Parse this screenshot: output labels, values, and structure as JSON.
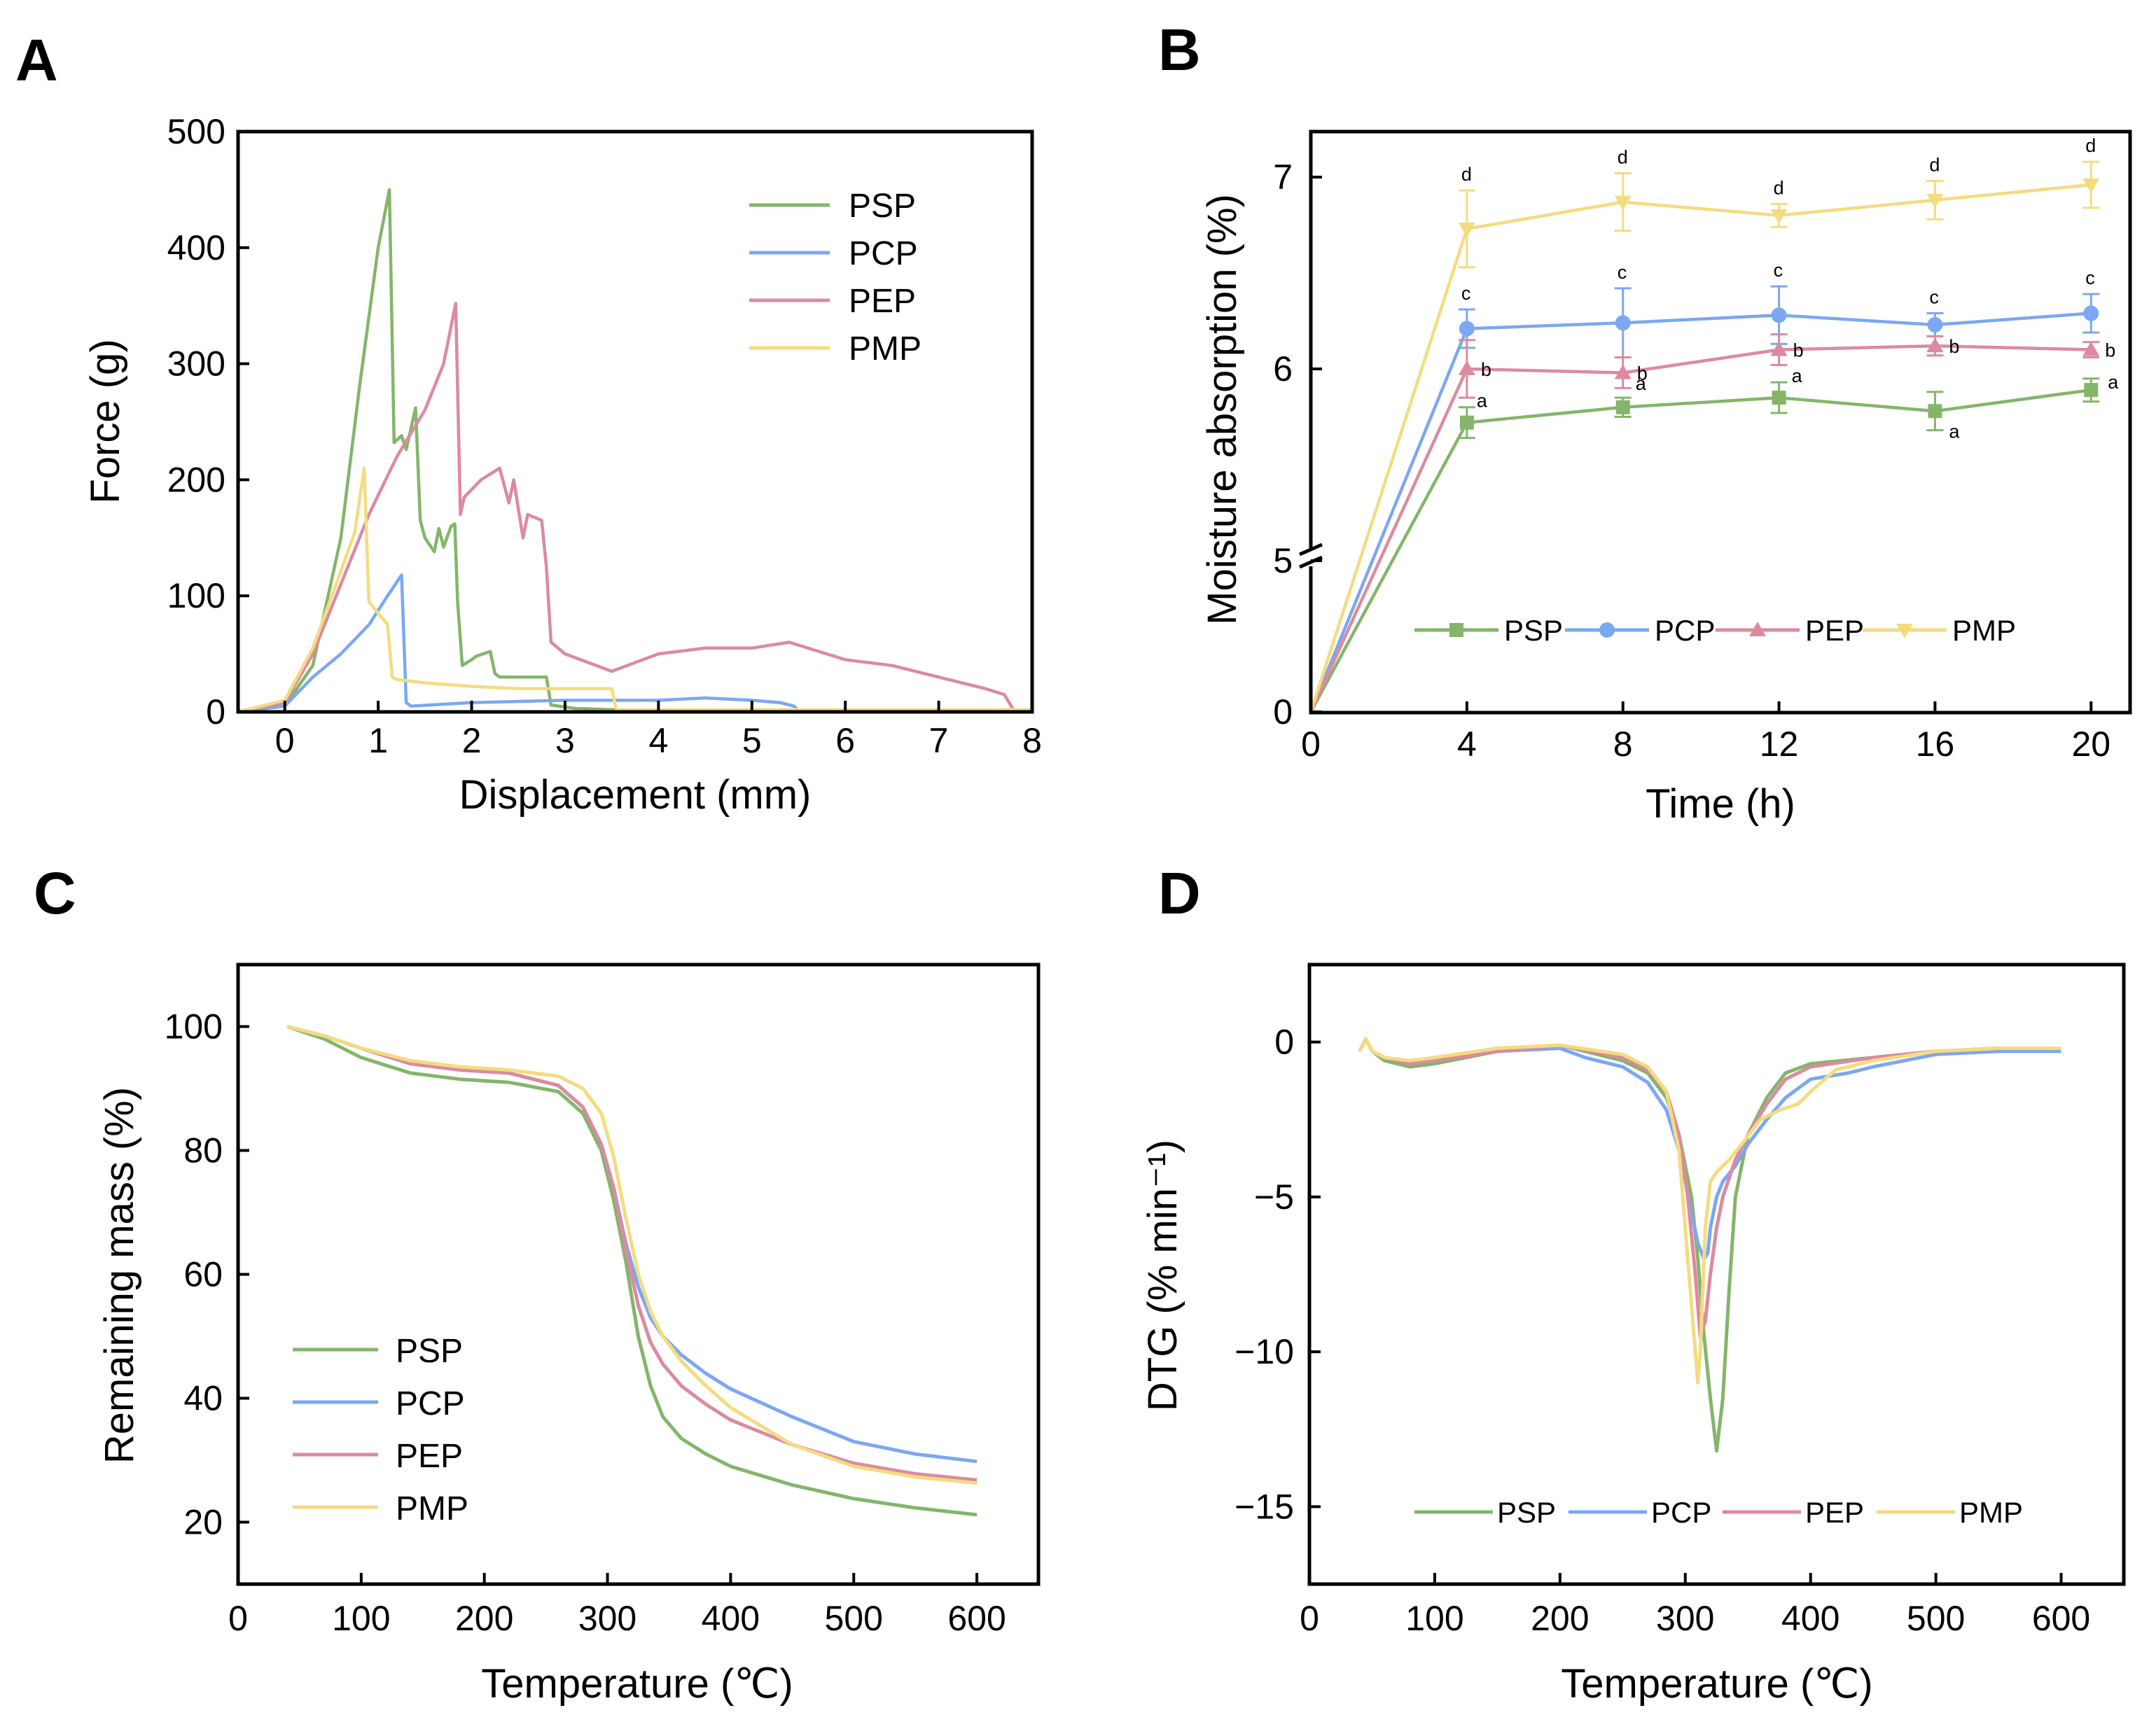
{
  "colors": {
    "PSP": "#84b56a",
    "PCP": "#7ba7f3",
    "PEP": "#dc8aa0",
    "PMP": "#f3dc80"
  },
  "chart_data": [
    {
      "panel": "A",
      "type": "line",
      "xlabel": "Displacement (mm)",
      "ylabel": "Force (g)",
      "xlim": [
        -0.5,
        8
      ],
      "ylim": [
        0,
        500
      ],
      "xticks": [
        0,
        1,
        2,
        3,
        4,
        5,
        6,
        7,
        8
      ],
      "yticks": [
        0,
        100,
        200,
        300,
        400,
        500
      ],
      "legend_position": "top-right",
      "series": [
        {
          "name": "PSP",
          "x": [
            -0.5,
            0,
            0.3,
            0.6,
            0.8,
            1.0,
            1.12,
            1.17,
            1.25,
            1.3,
            1.4,
            1.45,
            1.5,
            1.6,
            1.65,
            1.7,
            1.78,
            1.82,
            1.85,
            1.9,
            2.0,
            2.05,
            2.2,
            2.25,
            2.3,
            2.5,
            2.8,
            2.85,
            3.1,
            3.5,
            4.0,
            5.0,
            6.0,
            7.0,
            8.0
          ],
          "y": [
            0,
            5,
            40,
            150,
            280,
            400,
            450,
            232,
            238,
            226,
            262,
            165,
            150,
            138,
            158,
            142,
            160,
            162,
            95,
            40,
            45,
            48,
            52,
            33,
            30,
            30,
            30,
            6,
            3,
            2,
            2,
            2,
            2,
            2,
            2
          ]
        },
        {
          "name": "PCP",
          "x": [
            -0.5,
            0,
            0.3,
            0.6,
            0.9,
            1.1,
            1.25,
            1.3,
            1.35,
            2.0,
            3.0,
            4.0,
            4.5,
            5.0,
            5.3,
            5.45,
            5.5,
            6,
            7,
            8
          ],
          "y": [
            0,
            5,
            30,
            50,
            75,
            100,
            118,
            8,
            5,
            8,
            10,
            10,
            12,
            10,
            8,
            5,
            1,
            1,
            1,
            1
          ]
        },
        {
          "name": "PEP",
          "x": [
            -0.5,
            0,
            0.3,
            0.6,
            0.9,
            1.2,
            1.5,
            1.7,
            1.83,
            1.88,
            1.92,
            2.1,
            2.3,
            2.4,
            2.45,
            2.55,
            2.6,
            2.75,
            2.8,
            2.85,
            3.0,
            3.5,
            4.0,
            4.5,
            5.0,
            5.4,
            5.6,
            6.0,
            6.5,
            7.0,
            7.5,
            7.7,
            7.8,
            8.0
          ],
          "y": [
            0,
            8,
            50,
            110,
            170,
            220,
            260,
            300,
            352,
            170,
            185,
            200,
            210,
            180,
            200,
            150,
            170,
            165,
            125,
            60,
            50,
            35,
            50,
            55,
            55,
            60,
            55,
            45,
            40,
            30,
            20,
            15,
            2,
            2
          ]
        },
        {
          "name": "PMP",
          "x": [
            -0.5,
            0,
            0.3,
            0.55,
            0.75,
            0.85,
            0.9,
            1.0,
            1.1,
            1.15,
            1.2,
            1.5,
            2.0,
            2.5,
            3.0,
            3.5,
            3.55,
            4,
            8
          ],
          "y": [
            0,
            10,
            55,
            110,
            155,
            210,
            95,
            85,
            75,
            30,
            28,
            25,
            22,
            20,
            20,
            20,
            2,
            2,
            2
          ]
        }
      ]
    },
    {
      "panel": "B",
      "type": "line",
      "xlabel": "Time (h)",
      "ylabel": "Moisture absorption (%)",
      "x": [
        0,
        4,
        8,
        12,
        16,
        20
      ],
      "xlim": [
        0,
        21
      ],
      "yticks": [
        0,
        5,
        6,
        7
      ],
      "axis_break": [
        0,
        5
      ],
      "ylim_upper": [
        5,
        7.25
      ],
      "legend_position": "bottom",
      "series": [
        {
          "name": "PSP",
          "values": [
            0,
            5.72,
            5.8,
            5.85,
            5.78,
            5.89
          ],
          "errors": [
            0,
            0.08,
            0.05,
            0.08,
            0.1,
            0.06
          ],
          "letters": [
            "",
            "a",
            "a",
            "a",
            "a",
            "a"
          ]
        },
        {
          "name": "PCP",
          "values": [
            0,
            6.21,
            6.24,
            6.28,
            6.23,
            6.29
          ],
          "errors": [
            0,
            0.1,
            0.18,
            0.15,
            0.06,
            0.1
          ],
          "letters": [
            "",
            "c",
            "c",
            "c",
            "c",
            "c"
          ]
        },
        {
          "name": "PEP",
          "values": [
            0,
            6.0,
            5.98,
            6.1,
            6.12,
            6.1
          ],
          "errors": [
            0,
            0.15,
            0.08,
            0.08,
            0.05,
            0.04
          ],
          "letters": [
            "",
            "b",
            "b",
            "b",
            "b",
            "b"
          ]
        },
        {
          "name": "PMP",
          "values": [
            0,
            6.73,
            6.87,
            6.8,
            6.88,
            6.96
          ],
          "errors": [
            0,
            0.2,
            0.15,
            0.06,
            0.1,
            0.12
          ],
          "letters": [
            "",
            "d",
            "d",
            "d",
            "d",
            "d"
          ]
        }
      ]
    },
    {
      "panel": "C",
      "type": "line",
      "xlabel": "Temperature (℃)",
      "ylabel": "Remaining mass (%)",
      "xlim": [
        0,
        650
      ],
      "ylim": [
        10,
        110
      ],
      "xticks": [
        0,
        100,
        200,
        300,
        400,
        500,
        600
      ],
      "yticks": [
        20,
        40,
        60,
        80,
        100
      ],
      "legend_position": "bottom-left",
      "series": [
        {
          "name": "PSP",
          "x": [
            40,
            70,
            100,
            140,
            180,
            220,
            260,
            280,
            295,
            305,
            315,
            325,
            335,
            345,
            360,
            380,
            400,
            450,
            500,
            550,
            600
          ],
          "y": [
            100,
            98,
            95,
            92.5,
            91.5,
            91,
            89.5,
            86,
            80,
            72,
            62,
            50,
            42,
            37,
            33.5,
            31,
            29,
            26,
            23.8,
            22.3,
            21.2
          ]
        },
        {
          "name": "PCP",
          "x": [
            40,
            70,
            100,
            140,
            180,
            220,
            260,
            280,
            295,
            305,
            315,
            325,
            335,
            345,
            360,
            380,
            400,
            450,
            500,
            550,
            600
          ],
          "y": [
            100,
            98.5,
            96.5,
            94,
            93,
            92.5,
            90.5,
            87,
            81,
            74,
            65,
            58,
            53,
            50,
            47,
            44,
            41.5,
            37,
            33,
            31,
            29.8
          ]
        },
        {
          "name": "PEP",
          "x": [
            40,
            70,
            100,
            140,
            180,
            220,
            260,
            280,
            295,
            305,
            315,
            325,
            335,
            345,
            360,
            380,
            400,
            450,
            500,
            550,
            600
          ],
          "y": [
            100,
            98.5,
            96.5,
            94,
            93,
            92.5,
            90.5,
            87,
            81,
            74,
            64,
            55,
            49,
            45.5,
            42,
            39,
            36.5,
            32.5,
            29.5,
            27.8,
            26.8
          ]
        },
        {
          "name": "PMP",
          "x": [
            40,
            70,
            100,
            140,
            180,
            220,
            260,
            280,
            295,
            305,
            315,
            325,
            335,
            345,
            360,
            380,
            400,
            450,
            500,
            550,
            600
          ],
          "y": [
            100,
            98.5,
            96.5,
            94.5,
            93.5,
            93,
            92,
            90,
            86,
            79,
            69,
            60,
            54,
            50,
            46,
            42,
            38.5,
            32.5,
            29,
            27.3,
            26.3
          ]
        }
      ]
    },
    {
      "panel": "D",
      "type": "line",
      "xlabel": "Temperature (℃)",
      "ylabel": "DTG (% min⁻¹)",
      "xlim": [
        0,
        650
      ],
      "ylim": [
        -17.5,
        2.5
      ],
      "xticks": [
        0,
        100,
        200,
        300,
        400,
        500,
        600
      ],
      "yticks": [
        0,
        -5,
        -10,
        -15
      ],
      "legend_position": "bottom",
      "series": [
        {
          "name": "PSP",
          "x": [
            40,
            45,
            50,
            60,
            80,
            100,
            150,
            200,
            250,
            270,
            285,
            295,
            305,
            310,
            315,
            320,
            325,
            330,
            335,
            340,
            350,
            365,
            380,
            400,
            450,
            500,
            550,
            600
          ],
          "y": [
            -0.3,
            0.1,
            -0.3,
            -0.6,
            -0.8,
            -0.7,
            -0.3,
            -0.1,
            -0.6,
            -1.0,
            -1.8,
            -3.0,
            -5.0,
            -7.0,
            -9.5,
            -11.5,
            -13.2,
            -11.5,
            -8.0,
            -5.0,
            -3.0,
            -1.8,
            -1.0,
            -0.7,
            -0.5,
            -0.3,
            -0.2,
            -0.2
          ]
        },
        {
          "name": "PCP",
          "x": [
            40,
            45,
            50,
            60,
            80,
            100,
            150,
            200,
            220,
            250,
            270,
            285,
            295,
            305,
            310,
            315,
            318,
            320,
            325,
            330,
            340,
            350,
            365,
            380,
            400,
            430,
            450,
            500,
            550,
            600
          ],
          "y": [
            -0.3,
            0.1,
            -0.3,
            -0.5,
            -0.7,
            -0.6,
            -0.3,
            -0.2,
            -0.5,
            -0.8,
            -1.3,
            -2.2,
            -3.5,
            -5.5,
            -6.5,
            -7.0,
            -6.8,
            -6.0,
            -5.0,
            -4.5,
            -4.0,
            -3.3,
            -2.5,
            -1.8,
            -1.2,
            -1.0,
            -0.8,
            -0.4,
            -0.3,
            -0.3
          ]
        },
        {
          "name": "PEP",
          "x": [
            40,
            45,
            50,
            60,
            80,
            100,
            150,
            200,
            250,
            270,
            285,
            295,
            302,
            308,
            312,
            316,
            320,
            325,
            330,
            340,
            350,
            365,
            380,
            400,
            450,
            500,
            550,
            600
          ],
          "y": [
            -0.3,
            0.1,
            -0.3,
            -0.5,
            -0.7,
            -0.6,
            -0.3,
            -0.1,
            -0.5,
            -0.9,
            -1.6,
            -3.0,
            -5.0,
            -7.5,
            -9.5,
            -9.0,
            -7.5,
            -6.0,
            -5.0,
            -3.8,
            -3.0,
            -2.0,
            -1.2,
            -0.8,
            -0.5,
            -0.3,
            -0.2,
            -0.2
          ]
        },
        {
          "name": "PMP",
          "x": [
            40,
            45,
            50,
            60,
            80,
            100,
            150,
            200,
            250,
            270,
            285,
            295,
            302,
            306,
            310,
            312,
            316,
            320,
            325,
            335,
            345,
            360,
            375,
            390,
            400,
            420,
            450,
            500,
            550,
            600
          ],
          "y": [
            -0.3,
            0.1,
            -0.3,
            -0.5,
            -0.6,
            -0.5,
            -0.2,
            -0.1,
            -0.4,
            -0.8,
            -1.6,
            -3.5,
            -7.0,
            -9.0,
            -11.0,
            -10.0,
            -6.0,
            -4.5,
            -4.2,
            -3.8,
            -3.3,
            -2.5,
            -2.2,
            -2.0,
            -1.6,
            -0.9,
            -0.6,
            -0.3,
            -0.2,
            -0.2
          ]
        }
      ]
    }
  ]
}
